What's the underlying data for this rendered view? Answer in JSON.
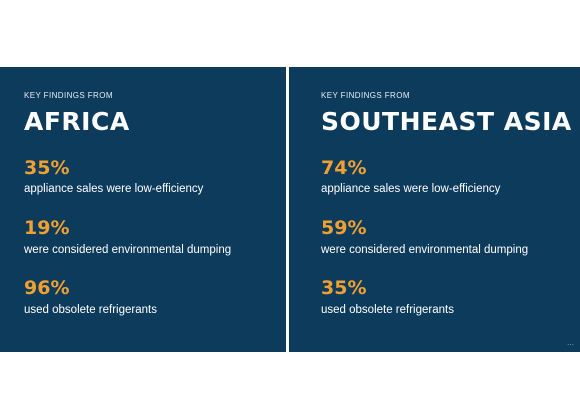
{
  "panels": [
    {
      "kicker": "KEY FINDINGS FROM",
      "region": "AFRICA",
      "stats": [
        {
          "value": "35%",
          "label": "appliance sales were low-efficiency"
        },
        {
          "value": "19%",
          "label": "were considered environmental dumping"
        },
        {
          "value": "96%",
          "label": "used obsolete refrigerants"
        }
      ]
    },
    {
      "kicker": "KEY FINDINGS FROM",
      "region": "SOUTHEAST ASIA",
      "stats": [
        {
          "value": "74%",
          "label": "appliance sales were low-efficiency"
        },
        {
          "value": "59%",
          "label": "were considered environmental dumping"
        },
        {
          "value": "35%",
          "label": "used obsolete refrigerants"
        }
      ]
    }
  ],
  "colors": {
    "panel_background": "#0d3b5c",
    "stat_accent": "#f0a030",
    "text": "#ffffff",
    "page_background": "#ffffff"
  },
  "corner_glyph": "⋯"
}
